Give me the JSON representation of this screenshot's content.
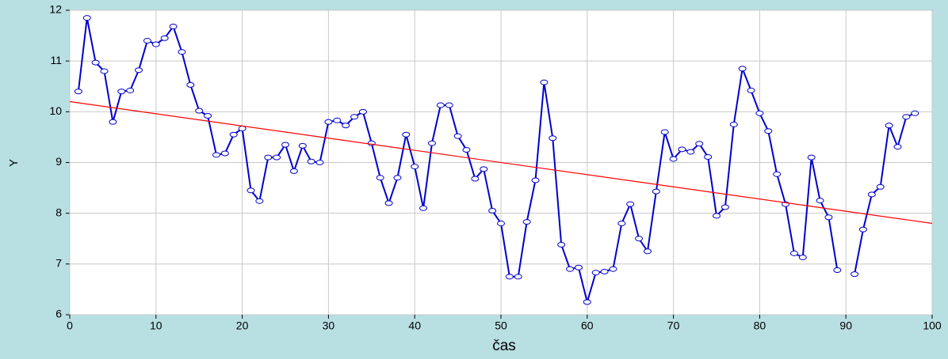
{
  "chart_data": {
    "type": "line",
    "xlabel": "čas",
    "ylabel": "Y",
    "xlim": [
      0,
      100
    ],
    "xticks": [
      0,
      10,
      20,
      30,
      40,
      50,
      60,
      70,
      80,
      90,
      100
    ],
    "ylim": [
      6,
      12
    ],
    "yticks": [
      6,
      7,
      8,
      9,
      10,
      11,
      12
    ],
    "grid": true,
    "series": [
      {
        "color": "#0000cc",
        "markers": true,
        "x": [
          1,
          2,
          3,
          4,
          5,
          6,
          7,
          8,
          9,
          10,
          11,
          12,
          13,
          14,
          15,
          16,
          17,
          18,
          19,
          20,
          21,
          22,
          23,
          24,
          25,
          26,
          27,
          28,
          29,
          30,
          31,
          32,
          33,
          34,
          35,
          36,
          37,
          38,
          39,
          40,
          41,
          42,
          43,
          44,
          45,
          46,
          47,
          48,
          49,
          50,
          51,
          52,
          53,
          54,
          55,
          56,
          57,
          58,
          59,
          60,
          61,
          62,
          63,
          64,
          65,
          66,
          67,
          68,
          69,
          70,
          71,
          72,
          73,
          74,
          75,
          76,
          77,
          78,
          79,
          80,
          81,
          82,
          83,
          84,
          85,
          86,
          87,
          88,
          89,
          90,
          91,
          92,
          93,
          94,
          95,
          96,
          97,
          98
        ],
        "values": [
          10.4,
          11.85,
          10.97,
          10.8,
          9.8,
          10.4,
          10.42,
          10.82,
          11.4,
          11.33,
          11.45,
          11.68,
          11.18,
          10.53,
          10.02,
          9.92,
          9.15,
          9.18,
          9.55,
          9.67,
          8.45,
          8.24,
          9.1,
          9.1,
          9.35,
          8.83,
          9.33,
          9.02,
          9.0,
          9.8,
          9.83,
          9.73,
          9.9,
          10.0,
          9.38,
          8.7,
          8.2,
          8.7,
          9.55,
          8.92,
          8.1,
          9.38,
          10.13,
          10.13,
          9.52,
          9.25,
          8.68,
          8.87,
          8.05,
          7.8,
          6.75,
          6.75,
          7.83,
          8.65,
          10.58,
          9.48,
          7.38,
          6.9,
          6.93,
          6.25,
          6.83,
          6.85,
          6.9,
          7.8,
          8.18,
          7.5,
          7.25,
          8.43,
          9.6,
          9.07,
          9.26,
          9.21,
          9.37,
          9.11,
          7.95,
          8.12,
          9.75,
          10.85,
          10.42,
          9.97,
          9.62,
          8.77,
          8.18,
          7.21,
          7.13,
          9.1,
          8.25,
          7.92,
          6.88,
          null,
          6.8,
          7.68,
          8.37,
          8.52,
          9.73,
          9.31,
          9.9,
          9.97
        ]
      },
      {
        "color": "#ff0000",
        "markers": false,
        "x": [
          0,
          100
        ],
        "values": [
          10.2,
          7.8
        ]
      }
    ]
  }
}
